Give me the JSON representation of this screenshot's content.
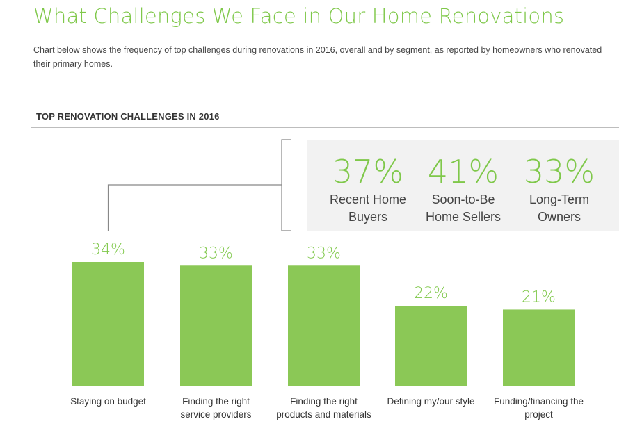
{
  "header": {
    "title": "What Challenges We Face in Our Home Renovations",
    "subtitle": "Chart below shows the frequency of top challenges during renovations in 2016, overall and by segment, as reported by homeowners who renovated their primary homes."
  },
  "colors": {
    "accent": "#7fc84a",
    "bar": "#8bc856",
    "callout_bg": "#f2f2f2",
    "text": "#333333",
    "bracket": "#888888"
  },
  "chart_data": {
    "type": "bar",
    "title": "TOP RENOVATION CHALLENGES IN 2016",
    "xlabel": "",
    "ylabel": "",
    "ylim": [
      0,
      34
    ],
    "grid": false,
    "unit": "%",
    "categories": [
      [
        "Staying on budget"
      ],
      [
        "Finding the right",
        "service providers"
      ],
      [
        "Finding the right",
        "products and materials"
      ],
      [
        "Defining my/our style"
      ],
      [
        "Funding/financing the",
        "project"
      ]
    ],
    "values": [
      34,
      33,
      33,
      22,
      21
    ],
    "value_labels": [
      "34%",
      "33%",
      "33%",
      "22%",
      "21%"
    ],
    "callout": {
      "applies_to_category": 0,
      "segments": [
        {
          "value": "37%",
          "label": [
            "Recent Home",
            "Buyers"
          ]
        },
        {
          "value": "41%",
          "label": [
            "Soon-to-Be",
            "Home Sellers"
          ]
        },
        {
          "value": "33%",
          "label": [
            "Long-Term",
            "Owners"
          ]
        }
      ]
    }
  }
}
